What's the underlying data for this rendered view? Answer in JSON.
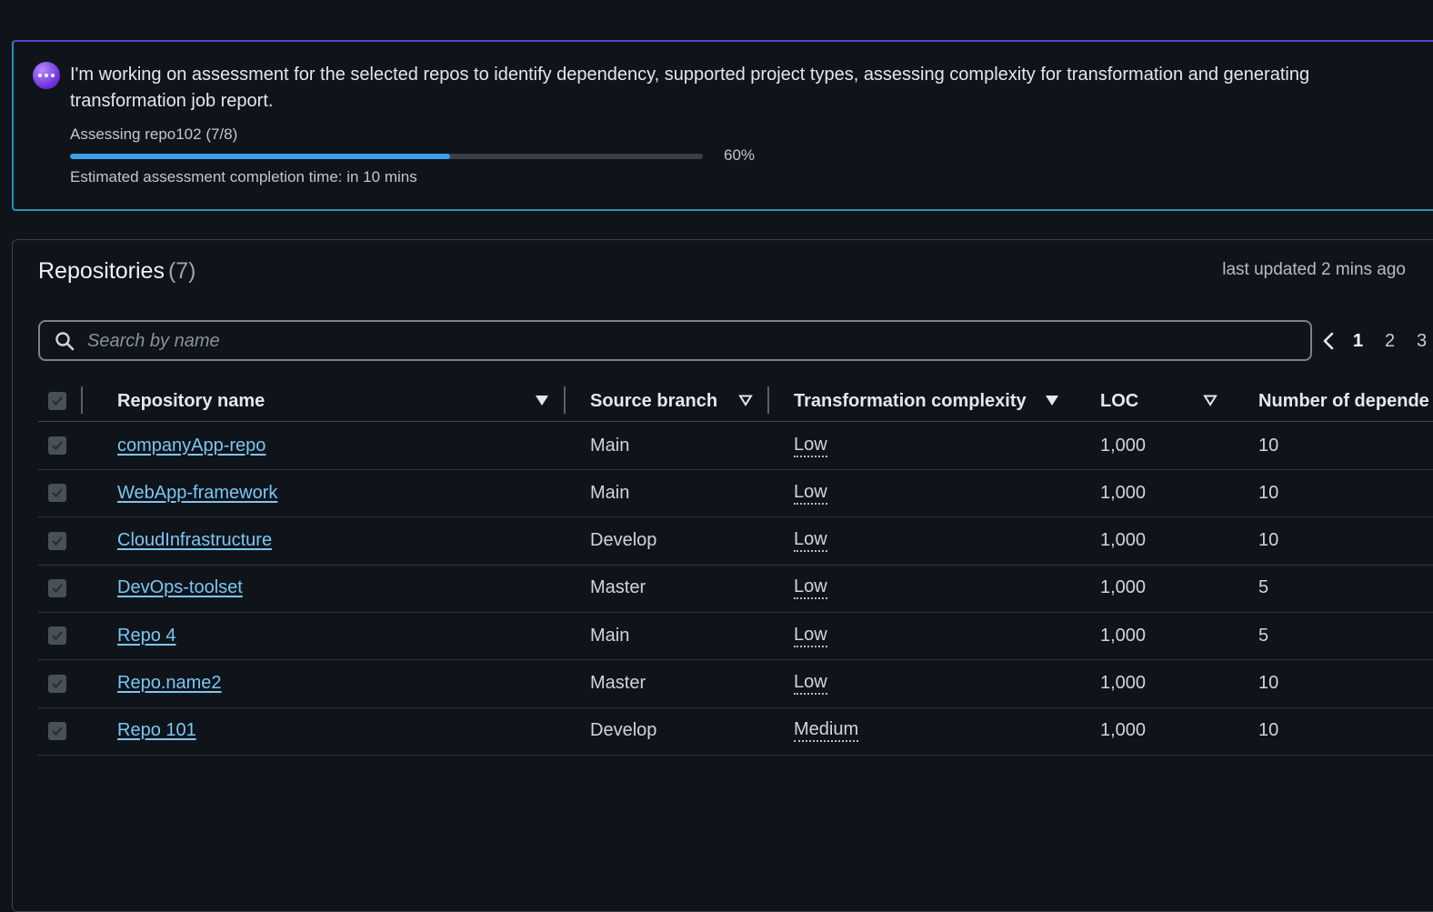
{
  "banner": {
    "message": "I'm working on assessment for the selected repos to identify dependency, supported project types, assessing complexity for transformation and generating transformation job report.",
    "status": "Assessing repo102 (7/8)",
    "progress_percent": 60,
    "progress_label": "60%",
    "eta": "Estimated assessment completion time: in 10 mins"
  },
  "panel": {
    "title": "Repositories",
    "count": "(7)",
    "last_updated": "last updated 2 mins ago"
  },
  "search": {
    "placeholder": "Search by name"
  },
  "pagination": {
    "pages": [
      "1",
      "2",
      "3"
    ],
    "current": "1"
  },
  "table": {
    "columns": {
      "name": "Repository name",
      "branch": "Source branch",
      "complexity": "Transformation complexity",
      "loc": "LOC",
      "deps": "Number of depende"
    },
    "rows": [
      {
        "name": "companyApp-repo",
        "branch": "Main",
        "complexity": "Low",
        "loc": "1,000",
        "deps": "10"
      },
      {
        "name": "WebApp-framework",
        "branch": "Main",
        "complexity": "Low",
        "loc": "1,000",
        "deps": "10"
      },
      {
        "name": "CloudInfrastructure",
        "branch": "Develop",
        "complexity": "Low",
        "loc": "1,000",
        "deps": "10"
      },
      {
        "name": "DevOps-toolset",
        "branch": "Master",
        "complexity": "Low",
        "loc": "1,000",
        "deps": "5"
      },
      {
        "name": "Repo 4",
        "branch": "Main",
        "complexity": "Low",
        "loc": "1,000",
        "deps": "5"
      },
      {
        "name": "Repo.name2",
        "branch": "Master",
        "complexity": "Low",
        "loc": "1,000",
        "deps": "10"
      },
      {
        "name": "Repo 101",
        "branch": "Develop",
        "complexity": "Medium",
        "loc": "1,000",
        "deps": "10"
      }
    ]
  },
  "colors": {
    "accent": "#3aa0e6",
    "link": "#7cc6f2",
    "background": "#0f141b"
  }
}
